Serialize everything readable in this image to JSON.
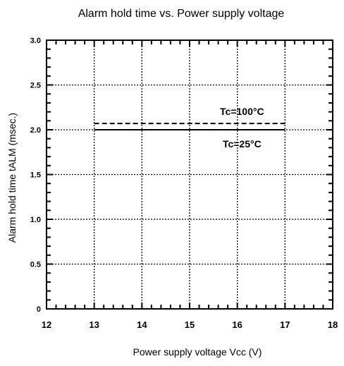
{
  "chart_data": {
    "type": "line",
    "title": "Alarm hold time vs. Power supply voltage",
    "xlabel": "Power supply voltage  Vcc (V)",
    "ylabel": "Alarm hold time  tALM (msec.)",
    "xlim": [
      12,
      18
    ],
    "ylim": [
      0,
      3.0
    ],
    "x_ticks": [
      "12",
      "13",
      "14",
      "15",
      "16",
      "17",
      "18"
    ],
    "y_ticks": [
      "0",
      "0.5",
      "1.0",
      "1.5",
      "2.0",
      "2.5",
      "3.0"
    ],
    "grid": true,
    "series": [
      {
        "name": "Tc=100°C",
        "line_style": "dashed",
        "x": [
          13,
          17
        ],
        "y": [
          2.07,
          2.07
        ]
      },
      {
        "name": "Tc=25°C",
        "line_style": "solid",
        "x": [
          13,
          17
        ],
        "y": [
          2.0,
          2.0
        ]
      }
    ],
    "colors": {
      "axis": "#000000",
      "grid": "#000000",
      "series": "#000000"
    }
  }
}
